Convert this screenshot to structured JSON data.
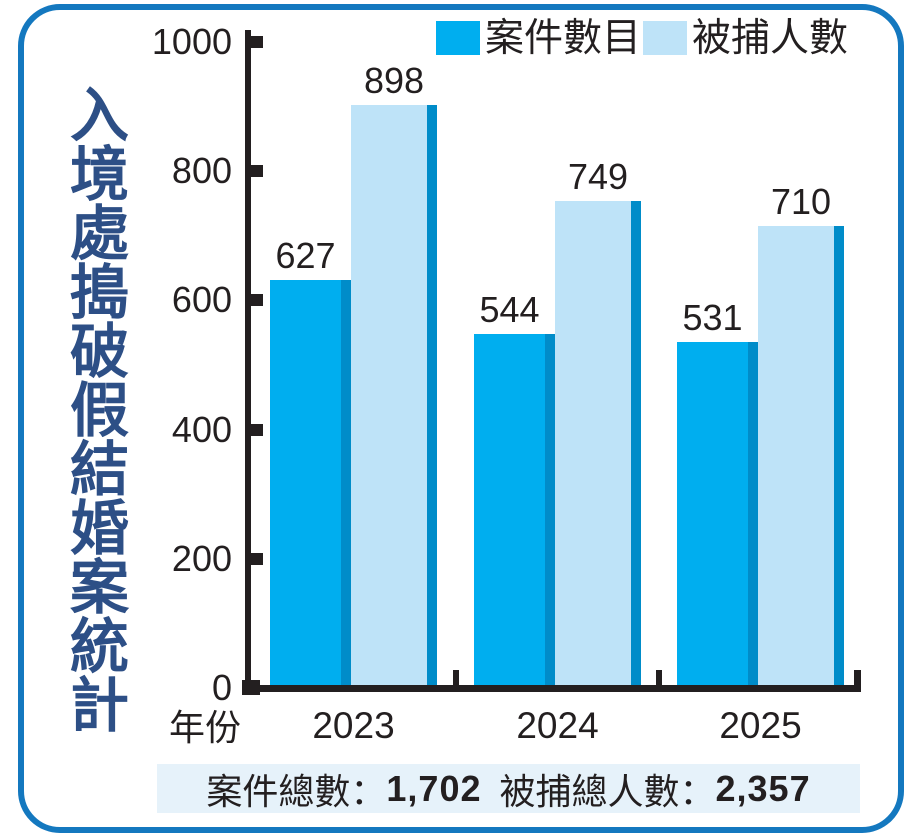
{
  "title": {
    "text": "入境處搗破假結婚案統計"
  },
  "legend": {
    "items": [
      {
        "label": "案件數目"
      },
      {
        "label": "被捕人數"
      }
    ]
  },
  "axis": {
    "x_title": "年份"
  },
  "chart_data": {
    "type": "bar",
    "categories": [
      "2023",
      "2024",
      "2025"
    ],
    "series": [
      {
        "name": "案件數目",
        "values": [
          627,
          544,
          531
        ],
        "color": "#00AEEF",
        "shadow_color": "#008CC9"
      },
      {
        "name": "被捕人數",
        "values": [
          898,
          749,
          710
        ],
        "color": "#BEE3F8",
        "shadow_color": "#008CC9"
      }
    ],
    "title": "入境處搗破假結婚案統計",
    "xlabel": "年份",
    "ylabel": "",
    "ylim": [
      0,
      1000
    ],
    "yticks": [
      0,
      200,
      400,
      600,
      800,
      1000
    ],
    "grid": false,
    "legend_position": "top-right",
    "totals": {
      "cases": "1,702",
      "arrests": "2,357"
    }
  },
  "summary": {
    "cases_label": "案件總數：",
    "cases_value": "1,702",
    "arrests_label": "被捕總人數：",
    "arrests_value": "2,357"
  },
  "colors": {
    "frame": "#1478BF",
    "title_text": "#2D4F86",
    "text": "#231F20",
    "summary_bg": "#E6F2FA",
    "bar_cases": "#00AEEF",
    "bar_arrests": "#BEE3F8",
    "bar_shadow": "#008CC9"
  }
}
